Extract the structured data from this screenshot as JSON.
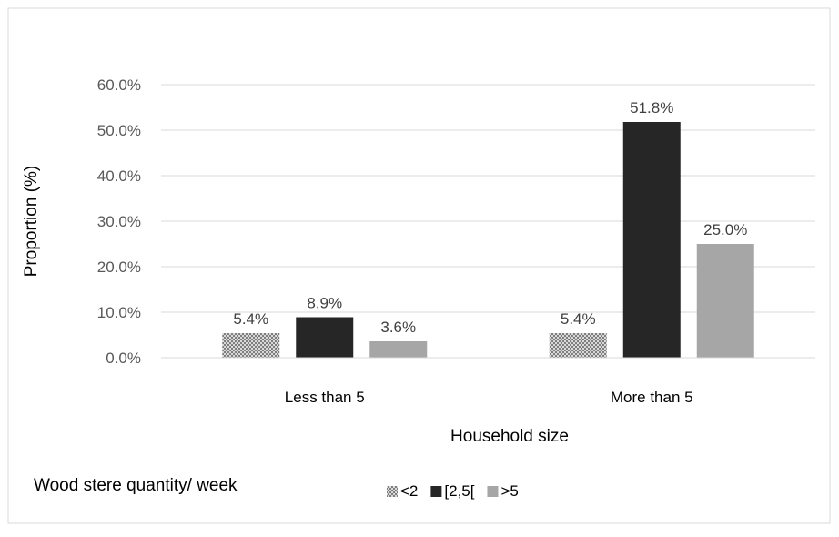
{
  "chart_data": {
    "type": "bar",
    "title": "",
    "xlabel": "Household size",
    "ylabel": "Proportion (%)",
    "ylim": [
      0,
      60
    ],
    "ytick_values": [
      0,
      10,
      20,
      30,
      40,
      50,
      60
    ],
    "ytick_labels": [
      "0.0%",
      "10.0%",
      "20.0%",
      "30.0%",
      "40.0%",
      "50.0%",
      "60.0%"
    ],
    "grid": true,
    "categories": [
      "Less than 5",
      "More than 5"
    ],
    "series": [
      {
        "name": "<2",
        "values": [
          5.4,
          5.4
        ],
        "labels": [
          "5.4%",
          "5.4%"
        ],
        "color": "#8c8c8c",
        "pattern": "checker"
      },
      {
        "name": "[2,5[",
        "values": [
          8.9,
          51.8
        ],
        "labels": [
          "8.9%",
          "51.8%"
        ],
        "color": "#262626"
      },
      {
        "name": ">5",
        "values": [
          3.6,
          25.0
        ],
        "labels": [
          "3.6%",
          "25.0%"
        ],
        "color": "#a6a6a6"
      }
    ],
    "legend": {
      "title": "Wood stere quantity/ week",
      "placement": "bottom"
    }
  }
}
